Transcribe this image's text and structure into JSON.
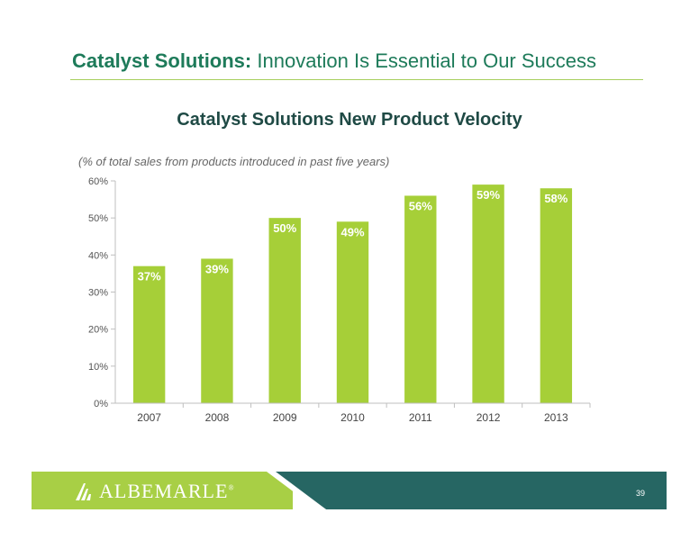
{
  "header": {
    "title_bold": "Catalyst Solutions:",
    "title_rest": "Innovation Is Essential to Our Success"
  },
  "chart_data": {
    "type": "bar",
    "title": "Catalyst Solutions New Product Velocity",
    "subtitle": "(% of total sales from products introduced in past five years)",
    "categories": [
      "2007",
      "2008",
      "2009",
      "2010",
      "2011",
      "2012",
      "2013"
    ],
    "values": [
      37,
      39,
      50,
      49,
      56,
      59,
      58
    ],
    "value_labels": [
      "37%",
      "39%",
      "50%",
      "49%",
      "56%",
      "59%",
      "58%"
    ],
    "ylim": [
      0,
      60
    ],
    "yticks": [
      0,
      10,
      20,
      30,
      40,
      50,
      60
    ],
    "ytick_labels": [
      "0%",
      "10%",
      "20%",
      "30%",
      "40%",
      "50%",
      "60%"
    ],
    "grid": false,
    "bar_color": "#a6cf38",
    "label_color": "#ffffff"
  },
  "footer": {
    "logo_text": "ALBEMARLE",
    "logo_mark": "®",
    "page_number": "39",
    "green": "#a8cf45",
    "teal": "#266663"
  }
}
